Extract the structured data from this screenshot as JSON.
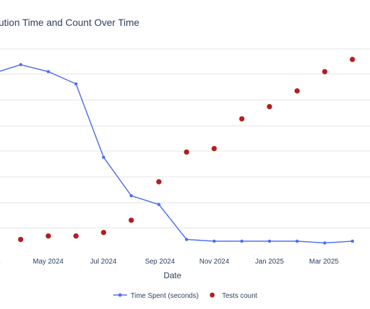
{
  "chart_data": {
    "type": "line",
    "title": "ution Time and Count Over Time",
    "xlabel": "Date",
    "ylabel": "",
    "grid": true,
    "legend_position": "bottom",
    "x_ticks": [
      "24",
      "May 2024",
      "Jul 2024",
      "Sep 2024",
      "Nov 2024",
      "Jan 2025",
      "Mar 2025"
    ],
    "series": [
      {
        "name": "Time Spent (seconds)",
        "kind": "line+markers",
        "color": "#4f6ff0",
        "values": [
          98,
          103,
          99,
          92,
          50,
          28,
          23,
          3,
          2,
          2,
          2,
          2,
          1,
          2
        ]
      },
      {
        "name": "Tests count",
        "kind": "markers",
        "color": "#b41e1e",
        "values": [
          null,
          3,
          5,
          5,
          7,
          14,
          36,
          53,
          55,
          72,
          79,
          88,
          99,
          106
        ]
      }
    ]
  }
}
